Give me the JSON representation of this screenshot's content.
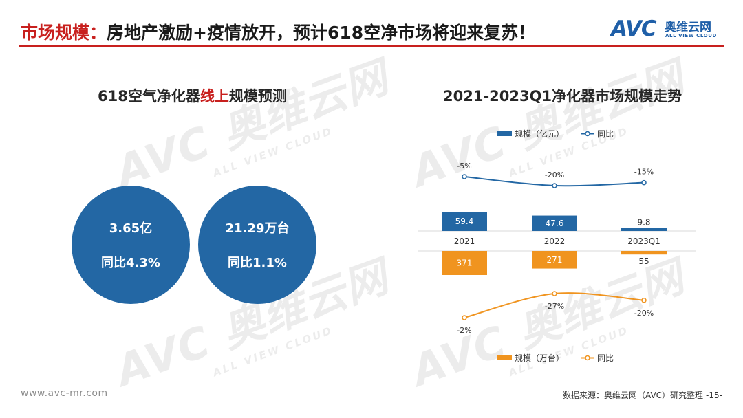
{
  "header": {
    "title_accent": "市场规模：",
    "title_rest": "房地产激励+疫情放开，预计618空净市场将迎来复苏！"
  },
  "logo": {
    "letters": "AVC",
    "cn": "奥维云网",
    "en": "ALL VIEW CLOUD"
  },
  "watermark": {
    "big": "AVC 奥维云网",
    "small": "ALL VIEW CLOUD"
  },
  "left_section": {
    "title_pre": "618空气净化器",
    "title_red": "线上",
    "title_post": "规模预测",
    "circles": [
      {
        "value": "3.65亿",
        "growth": "同比4.3%"
      },
      {
        "value": "21.29万台",
        "growth": "同比1.1%"
      }
    ]
  },
  "right_section": {
    "title": "2021-2023Q1净化器市场规模走势"
  },
  "colors": {
    "blue": "#2367a4",
    "orange": "#f0941f",
    "red": "#c8201e"
  },
  "chart_data": {
    "type": "bar",
    "categories": [
      "2021",
      "2022",
      "2023Q1"
    ],
    "title": "2021-2023Q1净化器市场规模走势",
    "legend_top": {
      "bar": "规模（亿元）",
      "line": "同比"
    },
    "legend_bottom": {
      "bar": "规模（万台）",
      "line": "同比"
    },
    "series": [
      {
        "name": "规模（亿元）",
        "kind": "bar",
        "direction": "up",
        "color": "#2367a4",
        "values": [
          59.4,
          47.6,
          9.8
        ],
        "labels": [
          "59.4",
          "47.6",
          "9.8"
        ]
      },
      {
        "name": "同比",
        "kind": "line",
        "group": "value",
        "color": "#2367a4",
        "values": [
          -5,
          -20,
          -15
        ],
        "labels": [
          "-5%",
          "-20%",
          "-15%"
        ]
      },
      {
        "name": "规模（万台）",
        "kind": "bar",
        "direction": "down",
        "color": "#f0941f",
        "values": [
          371,
          271,
          55
        ],
        "labels": [
          "371",
          "271",
          "55"
        ]
      },
      {
        "name": "同比",
        "kind": "line",
        "group": "volume",
        "color": "#f0941f",
        "values": [
          -2,
          -27,
          -20
        ],
        "labels": [
          "-2%",
          "-27%",
          "-20%"
        ]
      }
    ]
  },
  "footer": {
    "url": "www.avc-mr.com",
    "source": "数据来源：奥维云网（AVC）研究整理",
    "page": "-15-"
  }
}
